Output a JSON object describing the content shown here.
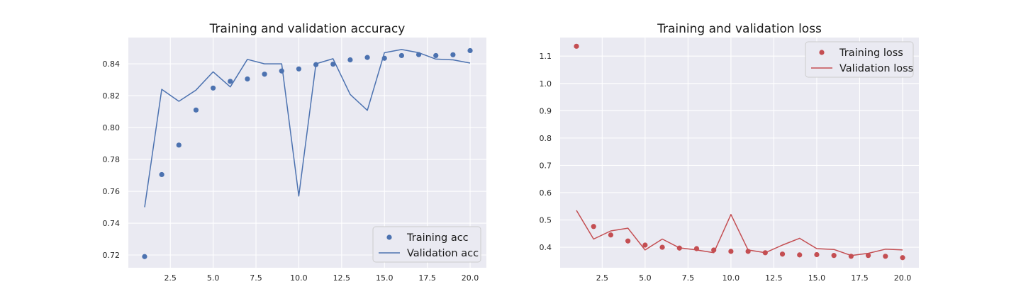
{
  "chart_data": [
    {
      "type": "line",
      "title": "Training and validation accuracy",
      "xlabel": "",
      "ylabel": "",
      "xlim": [
        0.05,
        20.95
      ],
      "ylim": [
        0.712,
        0.8565
      ],
      "xticks": [
        2.5,
        5.0,
        7.5,
        10.0,
        12.5,
        15.0,
        17.5,
        20.0
      ],
      "xtick_labels": [
        "2.5",
        "5.0",
        "7.5",
        "10.0",
        "12.5",
        "15.0",
        "17.5",
        "20.0"
      ],
      "yticks": [
        0.72,
        0.74,
        0.76,
        0.78,
        0.8,
        0.82,
        0.84
      ],
      "ytick_labels": [
        "0.72",
        "0.74",
        "0.76",
        "0.78",
        "0.80",
        "0.82",
        "0.84"
      ],
      "grid": true,
      "legend_position": "bottom-right",
      "color": "#4c72b0",
      "x": [
        1,
        2,
        3,
        4,
        5,
        6,
        7,
        8,
        9,
        10,
        11,
        12,
        13,
        14,
        15,
        16,
        17,
        18,
        19,
        20
      ],
      "series": [
        {
          "name": "Training acc",
          "style": "markers",
          "values": [
            0.719,
            0.7705,
            0.789,
            0.811,
            0.8248,
            0.829,
            0.8305,
            0.8335,
            0.8355,
            0.8368,
            0.8395,
            0.8398,
            0.8425,
            0.844,
            0.8435,
            0.8452,
            0.8458,
            0.8452,
            0.8457,
            0.8483
          ]
        },
        {
          "name": "Validation acc",
          "style": "line",
          "values": [
            0.75,
            0.824,
            0.8165,
            0.8235,
            0.835,
            0.8255,
            0.8428,
            0.84,
            0.84,
            0.757,
            0.84,
            0.8432,
            0.8208,
            0.8108,
            0.847,
            0.849,
            0.847,
            0.843,
            0.8425,
            0.8405
          ]
        }
      ]
    },
    {
      "type": "line",
      "title": "Training and validation loss",
      "xlabel": "",
      "ylabel": "",
      "xlim": [
        0.05,
        20.95
      ],
      "ylim": [
        0.325,
        1.168
      ],
      "xticks": [
        2.5,
        5.0,
        7.5,
        10.0,
        12.5,
        15.0,
        17.5,
        20.0
      ],
      "xtick_labels": [
        "2.5",
        "5.0",
        "7.5",
        "10.0",
        "12.5",
        "15.0",
        "17.5",
        "20.0"
      ],
      "yticks": [
        0.4,
        0.5,
        0.6,
        0.7,
        0.8,
        0.9,
        1.0,
        1.1
      ],
      "ytick_labels": [
        "0.4",
        "0.5",
        "0.6",
        "0.7",
        "0.8",
        "0.9",
        "1.0",
        "1.1"
      ],
      "grid": true,
      "legend_position": "top-right",
      "color": "#c44e52",
      "x": [
        1,
        2,
        3,
        4,
        5,
        6,
        7,
        8,
        9,
        10,
        11,
        12,
        13,
        14,
        15,
        16,
        17,
        18,
        19,
        20
      ],
      "series": [
        {
          "name": "Training loss",
          "style": "markers",
          "values": [
            1.136,
            0.476,
            0.445,
            0.423,
            0.408,
            0.4,
            0.397,
            0.395,
            0.39,
            0.385,
            0.385,
            0.38,
            0.375,
            0.372,
            0.373,
            0.37,
            0.367,
            0.37,
            0.367,
            0.362
          ]
        },
        {
          "name": "Validation loss",
          "style": "line",
          "values": [
            0.535,
            0.43,
            0.46,
            0.47,
            0.39,
            0.43,
            0.398,
            0.39,
            0.38,
            0.52,
            0.39,
            0.38,
            0.408,
            0.433,
            0.395,
            0.392,
            0.37,
            0.378,
            0.393,
            0.39
          ]
        }
      ]
    }
  ]
}
